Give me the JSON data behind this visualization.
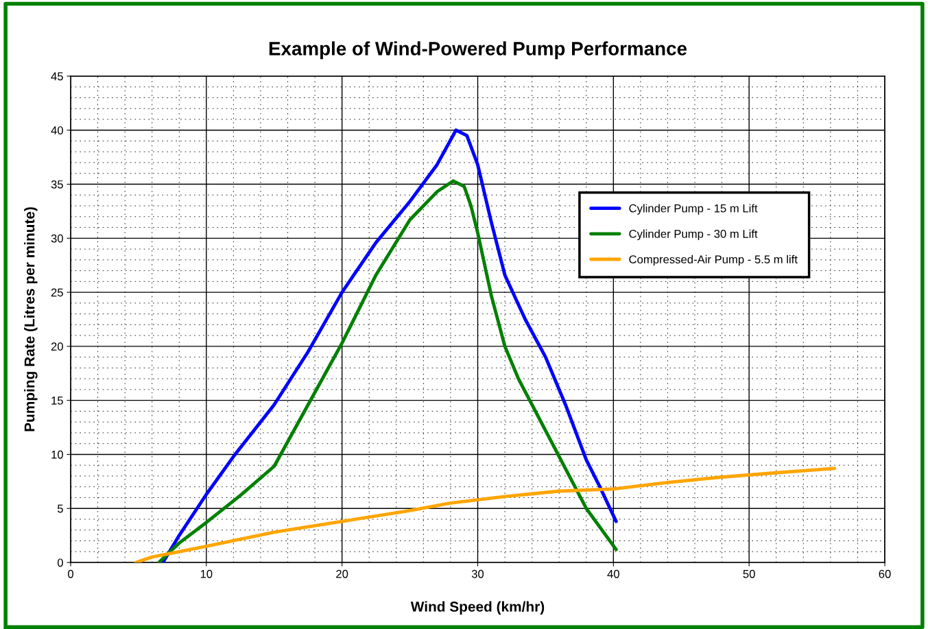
{
  "chart_data": {
    "type": "line",
    "title": "Example of Wind-Powered Pump Performance",
    "xlabel": "Wind Speed (km/hr)",
    "ylabel": "Pumping Rate (Litres per minute)",
    "xlim": [
      0,
      60
    ],
    "xticks": [
      0,
      10,
      20,
      30,
      40,
      50,
      60
    ],
    "ylim": [
      0,
      45
    ],
    "yticks": [
      0,
      5,
      10,
      15,
      20,
      25,
      30,
      35,
      40,
      45
    ],
    "grid": true,
    "legend": "right",
    "marker": "none",
    "line_style": "solid",
    "series": [
      {
        "name": "Cylinder Pump - 15 m Lift",
        "color": "#0000ff",
        "x": [
          6.8,
          8,
          10,
          12,
          15,
          17.5,
          20,
          22.5,
          25,
          27,
          28.4,
          29.2,
          30,
          31,
          32,
          33.5,
          35,
          36.5,
          38,
          39,
          40.2
        ],
        "values": [
          0,
          2.5,
          6.3,
          9.8,
          14.6,
          19.5,
          25,
          29.6,
          33.4,
          36.8,
          40,
          39.5,
          36.8,
          31.5,
          26.6,
          22.5,
          19,
          14.5,
          9.5,
          7,
          3.8
        ]
      },
      {
        "name": "Cylinder Pump - 30 m Lift",
        "color": "#008000",
        "x": [
          6.5,
          8,
          10,
          12.5,
          15,
          17.5,
          20,
          22.5,
          25,
          27,
          28.2,
          29,
          29.5,
          30,
          31,
          32,
          33,
          34,
          36,
          38,
          40.2
        ],
        "values": [
          0,
          1.8,
          3.7,
          6.2,
          8.9,
          14.6,
          20.3,
          26.6,
          31.7,
          34.3,
          35.3,
          34.8,
          33,
          30.5,
          24.7,
          20,
          17,
          14.6,
          9.8,
          5,
          1.2
        ]
      },
      {
        "name": "Compressed-Air Pump - 5.5 m lift",
        "color": "#ffa500",
        "x": [
          4.8,
          6,
          10,
          15,
          20,
          25,
          28,
          32,
          36,
          40,
          44,
          48,
          52,
          56.3
        ],
        "values": [
          0,
          0.5,
          1.5,
          2.8,
          3.8,
          4.8,
          5.5,
          6.1,
          6.6,
          6.8,
          7.4,
          7.9,
          8.3,
          8.7
        ]
      }
    ]
  }
}
